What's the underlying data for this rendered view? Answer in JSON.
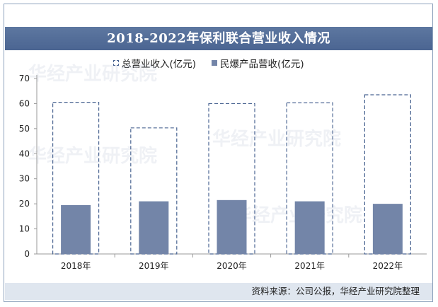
{
  "title": "2018-2022年保利联合营业收入情况",
  "legend": {
    "total": "总营业收入(亿元)",
    "explosives": "民爆产品营收(亿元)"
  },
  "source": "资料来源：公司公报，华经产业研究院整理",
  "watermark": "华经产业研究院",
  "colors": {
    "title_bg": "#4b6592",
    "bar": "#7385a8",
    "dash": "#4b6592",
    "footer_bg": "#dfe6ef"
  },
  "chart_data": {
    "type": "bar",
    "categories": [
      "2018年",
      "2019年",
      "2020年",
      "2021年",
      "2022年"
    ],
    "series": [
      {
        "name": "总营业收入(亿元)",
        "style": "dashed-outline",
        "values": [
          60.5,
          50.3,
          60.0,
          60.3,
          63.5
        ]
      },
      {
        "name": "民爆产品营收(亿元)",
        "style": "solid",
        "values": [
          19.5,
          21.0,
          21.5,
          21.0,
          20.0
        ]
      }
    ],
    "ylim": [
      0,
      70
    ],
    "yticks": [
      0,
      10,
      20,
      30,
      40,
      50,
      60,
      70
    ],
    "grid": false,
    "legend_position": "top-center"
  }
}
